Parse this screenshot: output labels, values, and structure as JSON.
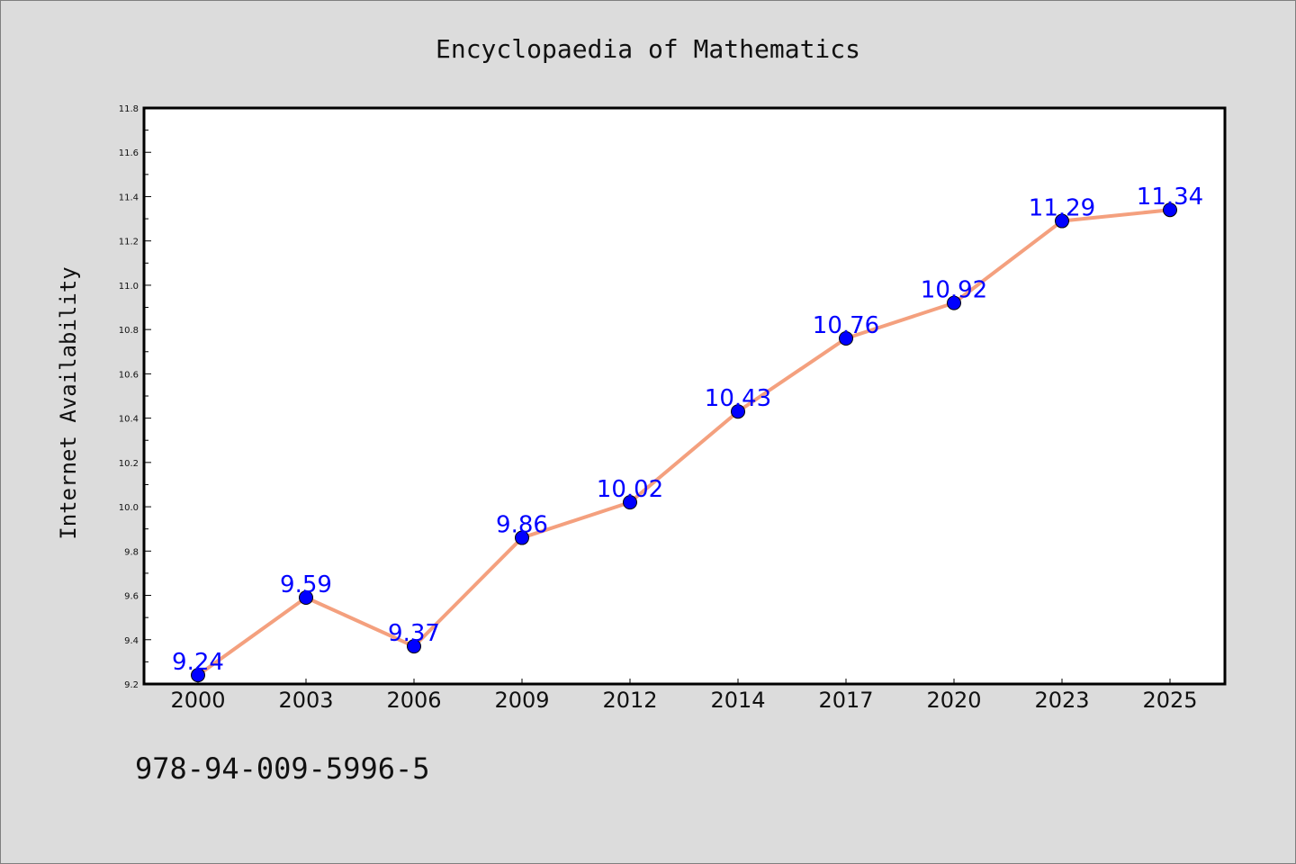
{
  "footer_text": "978-94-009-5996-5",
  "chart_data": {
    "type": "line",
    "title": "Encyclopaedia of Mathematics",
    "xlabel": "",
    "ylabel": "Internet Availability",
    "categories": [
      "2000",
      "2003",
      "2006",
      "2009",
      "2012",
      "2014",
      "2017",
      "2020",
      "2023",
      "2025"
    ],
    "series": [
      {
        "values": [
          9.24,
          9.59,
          9.37,
          9.86,
          10.02,
          10.43,
          10.76,
          10.92,
          11.29,
          11.34
        ],
        "labels": [
          "9.24",
          "9.59",
          "9.37",
          "9.86",
          "10.02",
          "10.43",
          "10.76",
          "10.92",
          "11.29",
          "11.34"
        ],
        "line_color": "#f4a07e",
        "marker_color": "#0000ff"
      }
    ],
    "ylim": [
      9.2,
      11.8
    ],
    "yticks": [
      "9.2",
      "9.4",
      "9.6",
      "9.8",
      "10.0",
      "10.2",
      "10.4",
      "10.6",
      "10.8",
      "11.0",
      "11.2",
      "11.4",
      "11.6",
      "11.8"
    ],
    "ytick_values": [
      9.2,
      9.4,
      9.6,
      9.8,
      10.0,
      10.2,
      10.4,
      10.6,
      10.8,
      11.0,
      11.2,
      11.4,
      11.6,
      11.8
    ],
    "grid": false,
    "legend": "none",
    "colors": {
      "background": "#dcdcdc",
      "plot_background": "#ffffff",
      "axis": "#000000"
    }
  }
}
